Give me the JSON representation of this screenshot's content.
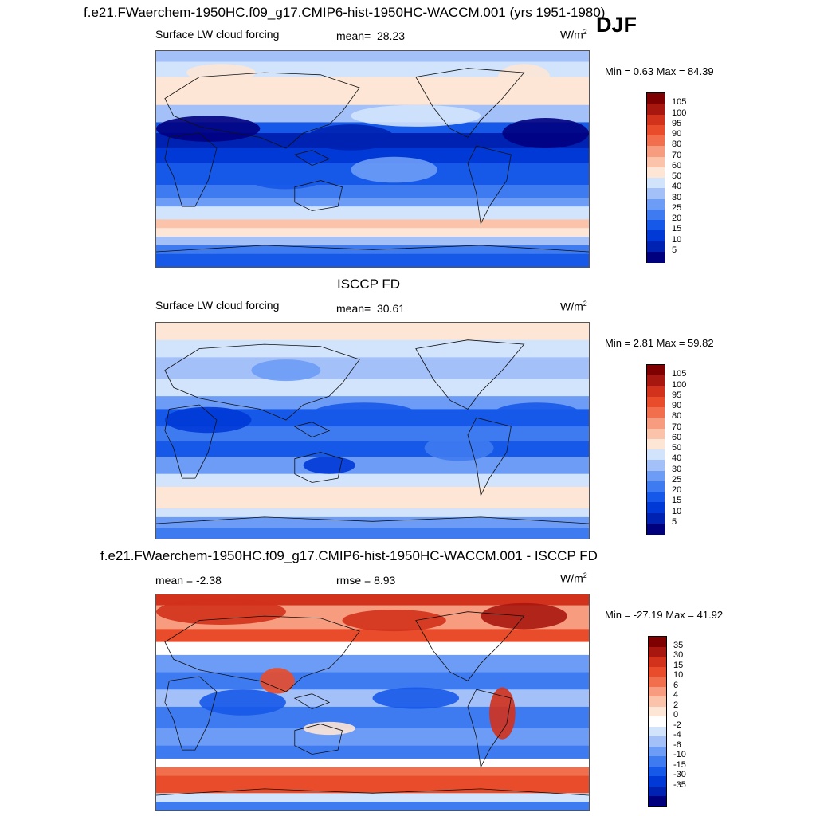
{
  "season": "DJF",
  "colors": {
    "seq": [
      "#00007f",
      "#0022b2",
      "#0039d6",
      "#1659e8",
      "#3f7bf0",
      "#6d9cf6",
      "#a3c0f9",
      "#d2e3fc",
      "#fde6d6",
      "#fbc4aa",
      "#f79c7f",
      "#f26f4e",
      "#e94c2a",
      "#d2311b",
      "#a71710",
      "#7f0000"
    ],
    "div": [
      "#00007f",
      "#0022b2",
      "#0039d6",
      "#1659e8",
      "#3f7bf0",
      "#6d9cf6",
      "#a3c0f9",
      "#d2e3fc",
      "#ffffff",
      "#fde6d6",
      "#fbc4aa",
      "#f79c7f",
      "#f26f4e",
      "#e94c2a",
      "#d2311b",
      "#a71710",
      "#7f0000"
    ]
  },
  "chart_data": [
    {
      "type": "heatmap",
      "title": "f.e21.FWaerchem-1950HC.f09_g17.CMIP6-hist-1950HC-WACCM.001 (yrs 1951-1980)",
      "variable": "Surface LW cloud forcing",
      "mean_label": "mean=",
      "mean": "28.23",
      "units": "W/m",
      "units_exp": "2",
      "minmax_text": "Min =   0.63 Max =  84.39",
      "min": 0.63,
      "max": 84.39,
      "colorbar_levels": [
        "105",
        "100",
        "95",
        "90",
        "80",
        "70",
        "60",
        "50",
        "40",
        "30",
        "25",
        "20",
        "15",
        "10",
        "5"
      ]
    },
    {
      "type": "heatmap",
      "title": "ISCCP FD",
      "variable": "Surface LW cloud forcing",
      "mean_label": "mean=",
      "mean": "30.61",
      "units": "W/m",
      "units_exp": "2",
      "minmax_text": "Min =   2.81 Max =  59.82",
      "min": 2.81,
      "max": 59.82,
      "colorbar_levels": [
        "105",
        "100",
        "95",
        "90",
        "80",
        "70",
        "60",
        "50",
        "40",
        "30",
        "25",
        "20",
        "15",
        "10",
        "5"
      ]
    },
    {
      "type": "heatmap",
      "title": "f.e21.FWaerchem-1950HC.f09_g17.CMIP6-hist-1950HC-WACCM.001 - ISCCP FD",
      "mean_label": "mean =",
      "mean": "-2.38",
      "rmse_label": "rmse =",
      "rmse": "8.93",
      "units": "W/m",
      "units_exp": "2",
      "minmax_text": "Min = -27.19 Max =  41.92",
      "min": -27.19,
      "max": 41.92,
      "colorbar_levels": [
        "35",
        "30",
        "15",
        "10",
        "6",
        "4",
        "2",
        "0",
        "-2",
        "-4",
        "-6",
        "-10",
        "-15",
        "-30",
        "-35"
      ]
    }
  ]
}
